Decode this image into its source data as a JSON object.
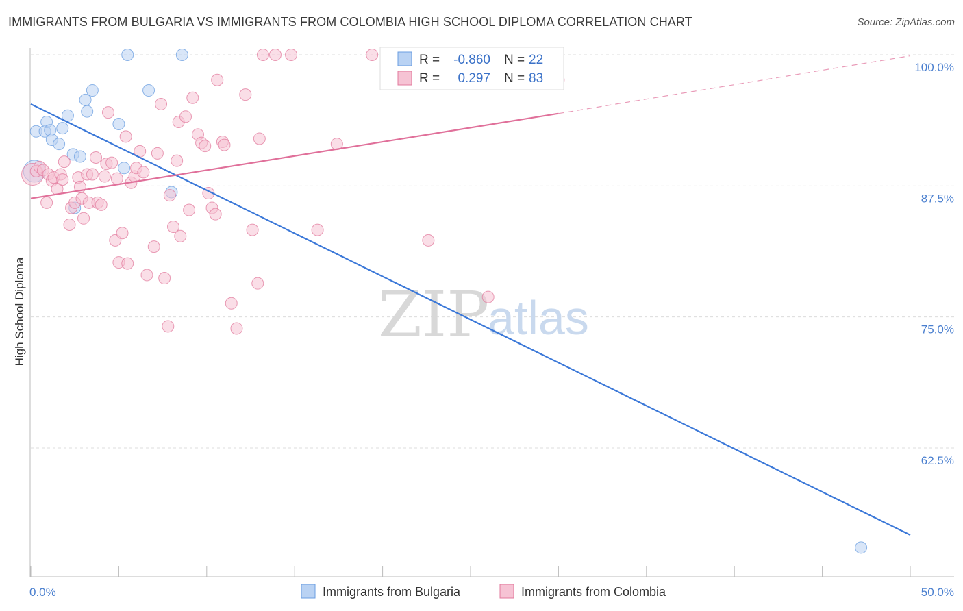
{
  "chart_data": {
    "type": "scatter",
    "title": "IMMIGRANTS FROM BULGARIA VS IMMIGRANTS FROM COLOMBIA HIGH SCHOOL DIPLOMA CORRELATION CHART",
    "source": "Source: ZipAtlas.com",
    "xlabel": "",
    "ylabel": "High School Diploma",
    "xlim": [
      0,
      50
    ],
    "ylim": [
      50,
      101
    ],
    "x_tick_labels": [
      "0.0%",
      "50.0%"
    ],
    "y_ticks": [
      {
        "value": 100,
        "label": "100.0%"
      },
      {
        "value": 87.5,
        "label": "87.5%"
      },
      {
        "value": 75,
        "label": "75.0%"
      },
      {
        "value": 62.5,
        "label": "62.5%"
      }
    ],
    "watermark": {
      "zip": "ZIP",
      "atlas": "atlas"
    },
    "legend": {
      "r_label": "R =",
      "n_label": "N =",
      "entries": [
        {
          "r": "-0.860",
          "n": "22"
        },
        {
          "r": "0.297",
          "n": "83"
        }
      ]
    },
    "series": [
      {
        "name": "Immigrants from Bulgaria",
        "color": "#6a9de0",
        "fill": "#b9d2f3",
        "trend": {
          "x0": 0,
          "y0": 95.3,
          "x1": 50,
          "y1": 54.2
        },
        "points": [
          [
            0.2,
            88.9
          ],
          [
            0.3,
            92.7
          ],
          [
            0.8,
            92.7
          ],
          [
            0.9,
            93.6
          ],
          [
            1.1,
            92.8
          ],
          [
            1.2,
            91.9
          ],
          [
            1.6,
            91.5
          ],
          [
            1.8,
            93.0
          ],
          [
            2.1,
            94.2
          ],
          [
            2.5,
            85.4
          ],
          [
            2.4,
            90.5
          ],
          [
            2.8,
            90.3
          ],
          [
            3.1,
            95.7
          ],
          [
            3.2,
            94.6
          ],
          [
            3.5,
            96.6
          ],
          [
            5.0,
            93.4
          ],
          [
            5.3,
            89.2
          ],
          [
            5.5,
            100.0
          ],
          [
            6.7,
            96.6
          ],
          [
            8.0,
            86.9
          ],
          [
            8.6,
            100.0
          ],
          [
            47.2,
            53.0
          ]
        ]
      },
      {
        "name": "Immigrants from Colombia",
        "color": "#e2799c",
        "fill": "#f6c3d4",
        "trend": {
          "x0": 0,
          "y0": 86.3,
          "x1": 30,
          "y1": 94.4
        },
        "trend_ext": {
          "x0": 30,
          "y0": 94.4,
          "x1": 50,
          "y1": 99.9
        },
        "points": [
          [
            0.1,
            88.6
          ],
          [
            0.3,
            88.9
          ],
          [
            0.5,
            89.3
          ],
          [
            0.7,
            89.0
          ],
          [
            0.9,
            85.9
          ],
          [
            1.0,
            88.6
          ],
          [
            1.2,
            88.0
          ],
          [
            1.3,
            88.3
          ],
          [
            1.5,
            87.2
          ],
          [
            1.7,
            88.6
          ],
          [
            1.8,
            88.1
          ],
          [
            1.9,
            89.8
          ],
          [
            2.2,
            83.8
          ],
          [
            2.3,
            85.4
          ],
          [
            2.5,
            85.9
          ],
          [
            2.7,
            88.3
          ],
          [
            2.8,
            87.4
          ],
          [
            2.9,
            86.3
          ],
          [
            3.0,
            84.4
          ],
          [
            3.2,
            88.6
          ],
          [
            3.3,
            85.9
          ],
          [
            3.5,
            88.6
          ],
          [
            3.7,
            90.2
          ],
          [
            3.8,
            85.9
          ],
          [
            4.0,
            85.7
          ],
          [
            4.2,
            88.4
          ],
          [
            4.3,
            89.6
          ],
          [
            4.4,
            94.5
          ],
          [
            4.6,
            89.7
          ],
          [
            4.8,
            82.3
          ],
          [
            4.9,
            88.2
          ],
          [
            5.0,
            80.2
          ],
          [
            5.2,
            83.0
          ],
          [
            5.4,
            92.2
          ],
          [
            5.5,
            80.1
          ],
          [
            5.7,
            87.8
          ],
          [
            5.9,
            88.4
          ],
          [
            6.0,
            89.2
          ],
          [
            6.2,
            90.8
          ],
          [
            6.4,
            88.8
          ],
          [
            6.6,
            79.0
          ],
          [
            7.0,
            81.7
          ],
          [
            7.2,
            90.6
          ],
          [
            7.4,
            95.3
          ],
          [
            7.6,
            78.7
          ],
          [
            7.8,
            74.1
          ],
          [
            7.9,
            86.6
          ],
          [
            8.1,
            83.6
          ],
          [
            8.3,
            89.9
          ],
          [
            8.4,
            93.6
          ],
          [
            8.5,
            82.7
          ],
          [
            8.8,
            94.1
          ],
          [
            9.0,
            85.2
          ],
          [
            9.2,
            95.9
          ],
          [
            9.5,
            92.4
          ],
          [
            9.7,
            91.6
          ],
          [
            9.9,
            91.3
          ],
          [
            10.1,
            86.8
          ],
          [
            10.3,
            85.4
          ],
          [
            10.5,
            84.8
          ],
          [
            10.6,
            97.6
          ],
          [
            10.9,
            91.7
          ],
          [
            11.0,
            91.4
          ],
          [
            11.4,
            76.3
          ],
          [
            11.7,
            73.9
          ],
          [
            12.2,
            96.2
          ],
          [
            12.6,
            83.3
          ],
          [
            12.9,
            78.2
          ],
          [
            13.0,
            92.0
          ],
          [
            13.2,
            100.0
          ],
          [
            13.9,
            100.0
          ],
          [
            14.8,
            100.0
          ],
          [
            16.3,
            83.3
          ],
          [
            17.4,
            91.5
          ],
          [
            19.4,
            100.0
          ],
          [
            20.5,
            100.0
          ],
          [
            21.0,
            100.0
          ],
          [
            22.6,
            82.3
          ],
          [
            26.0,
            76.9
          ],
          [
            26.8,
            100.0
          ],
          [
            28.4,
            100.0
          ],
          [
            29.0,
            100.0
          ],
          [
            30.0,
            97.6
          ]
        ]
      }
    ]
  }
}
